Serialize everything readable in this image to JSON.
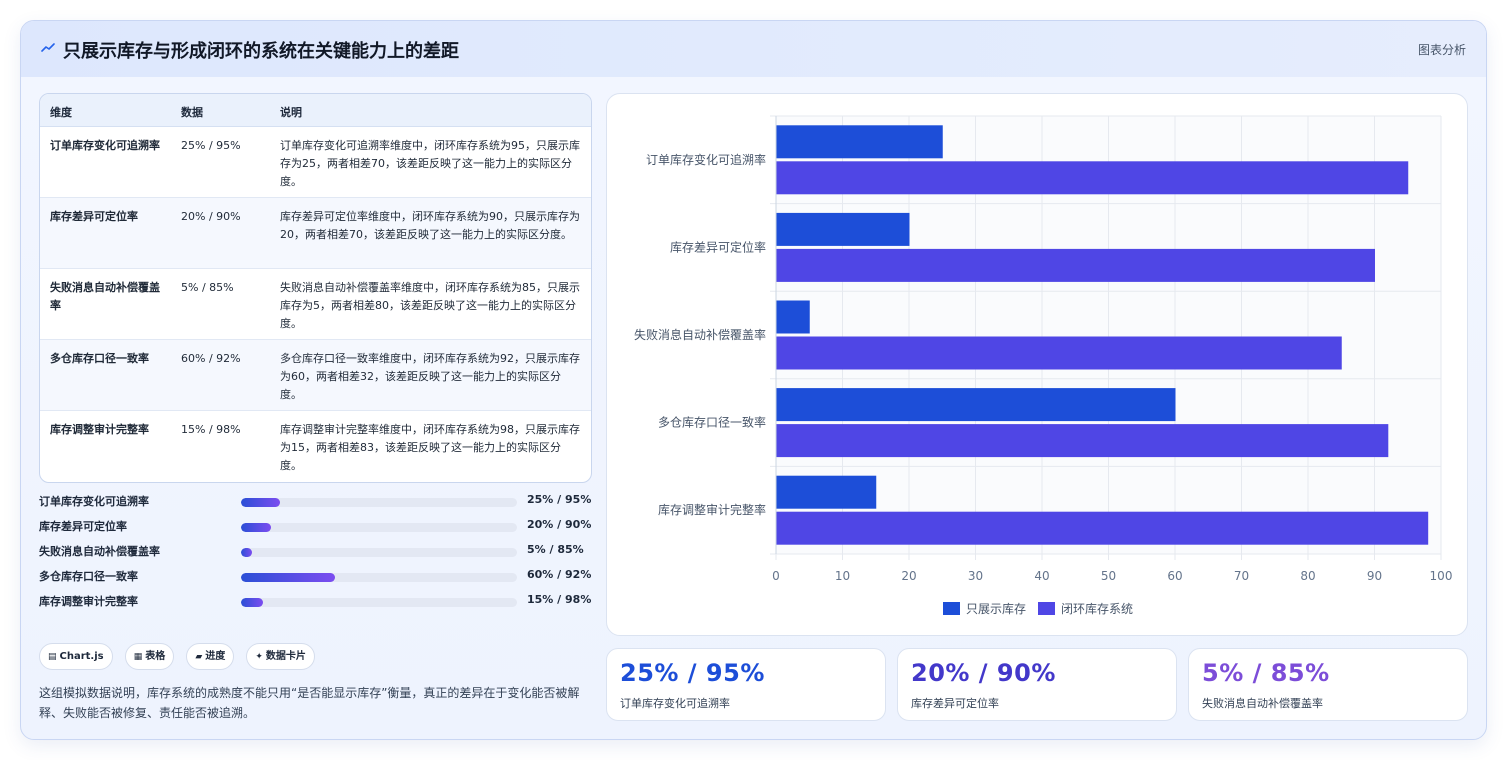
{
  "header": {
    "title": "只展示库存与形成闭环的系统在关键能力上的差距",
    "link": "图表分析"
  },
  "table": {
    "columns": [
      "维度",
      "数据",
      "说明"
    ],
    "rows": [
      {
        "dim": "订单库存变化可追溯率",
        "val": "25% / 95%",
        "desc": "订单库存变化可追溯率维度中，闭环库存系统为95，只展示库存为25，两者相差70，该差距反映了这一能力上的实际区分度。"
      },
      {
        "dim": "库存差异可定位率",
        "val": "20% / 90%",
        "desc": "库存差异可定位率维度中，闭环库存系统为90，只展示库存为20，两者相差70，该差距反映了这一能力上的实际区分度。"
      },
      {
        "dim": "失败消息自动补偿覆盖率",
        "val": "5% / 85%",
        "desc": "失败消息自动补偿覆盖率维度中，闭环库存系统为85，只展示库存为5，两者相差80，该差距反映了这一能力上的实际区分度。"
      },
      {
        "dim": "多仓库存口径一致率",
        "val": "60% / 92%",
        "desc": "多仓库存口径一致率维度中，闭环库存系统为92，只展示库存为60，两者相差32，该差距反映了这一能力上的实际区分度。"
      },
      {
        "dim": "库存调整审计完整率",
        "val": "15% / 98%",
        "desc": "库存调整审计完整率维度中，闭环库存系统为98，只展示库存为15，两者相差83，该差距反映了这一能力上的实际区分度。"
      }
    ]
  },
  "progress": [
    {
      "label": "订单库存变化可追溯率",
      "text": "25% / 95%",
      "pct": 14
    },
    {
      "label": "库存差异可定位率",
      "text": "20% / 90%",
      "pct": 11
    },
    {
      "label": "失败消息自动补偿覆盖率",
      "text": "5% / 85%",
      "pct": 4
    },
    {
      "label": "多仓库存口径一致率",
      "text": "60% / 92%",
      "pct": 34
    },
    {
      "label": "库存调整审计完整率",
      "text": "15% / 98%",
      "pct": 8
    }
  ],
  "chips": [
    {
      "icon": "▤",
      "label": "Chart.js"
    },
    {
      "icon": "▦",
      "label": "表格"
    },
    {
      "icon": "▰",
      "label": "进度"
    },
    {
      "icon": "✦",
      "label": "数据卡片"
    }
  ],
  "note": "这组模拟数据说明，库存系统的成熟度不能只用“是否能显示库存”衡量，真正的差异在于变化能否被解释、失败能否被修复、责任能否被追溯。",
  "stats": [
    {
      "value": "25% / 95%",
      "label": "订单库存变化可追溯率",
      "color": "#1d4ed8"
    },
    {
      "value": "20% / 90%",
      "label": "库存差异可定位率",
      "color": "#4338ca"
    },
    {
      "value": "5% / 85%",
      "label": "失败消息自动补偿覆盖率",
      "color": "#7c4dd8"
    }
  ],
  "colors": {
    "series1": "#1d4ed8",
    "series2": "#4f46e5"
  },
  "chart_data": {
    "type": "bar",
    "orientation": "horizontal",
    "categories": [
      "订单库存变化可追溯率",
      "库存差异可定位率",
      "失败消息自动补偿覆盖率",
      "多仓库存口径一致率",
      "库存调整审计完整率"
    ],
    "series": [
      {
        "name": "只展示库存",
        "values": [
          25,
          20,
          5,
          60,
          15
        ],
        "color": "#1d4ed8"
      },
      {
        "name": "闭环库存系统",
        "values": [
          95,
          90,
          85,
          92,
          98
        ],
        "color": "#4f46e5"
      }
    ],
    "xlim": [
      0,
      100
    ],
    "xticks": [
      0,
      10,
      20,
      30,
      40,
      50,
      60,
      70,
      80,
      90,
      100
    ],
    "grid": true,
    "legend": "bottom"
  }
}
